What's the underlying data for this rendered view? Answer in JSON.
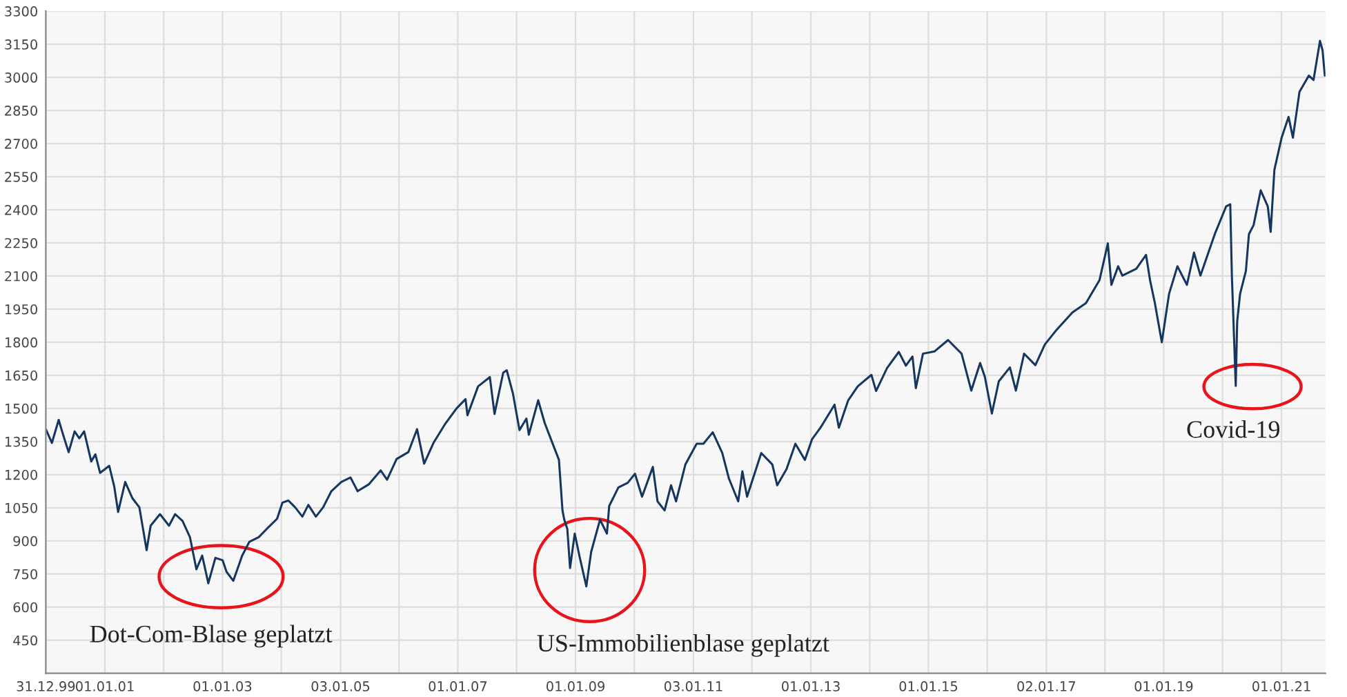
{
  "chart_data": {
    "type": "line",
    "x": [
      "1999-12-31",
      "2000-02-07",
      "2000-03-20",
      "2000-04-19",
      "2000-05-21",
      "2000-06-27",
      "2000-07-26",
      "2000-08-25",
      "2000-10-08",
      "2000-11-03",
      "2000-12-02",
      "2001-01-28",
      "2001-02-28",
      "2001-03-24",
      "2001-05-07",
      "2001-06-20",
      "2001-08-03",
      "2001-09-17",
      "2001-10-12",
      "2001-12-09",
      "2002-02-03",
      "2002-03-13",
      "2002-04-28",
      "2002-06-13",
      "2002-07-23",
      "2002-08-28",
      "2002-10-05",
      "2002-11-18",
      "2003-01-02",
      "2003-01-26",
      "2003-03-09",
      "2003-05-03",
      "2003-06-17",
      "2003-08-14",
      "2003-10-08",
      "2003-12-06",
      "2004-01-08",
      "2004-02-14",
      "2004-03-27",
      "2004-05-11",
      "2004-06-17",
      "2004-08-03",
      "2004-09-17",
      "2004-11-07",
      "2005-01-08",
      "2005-03-06",
      "2005-04-19",
      "2005-06-27",
      "2005-09-09",
      "2005-10-19",
      "2005-12-17",
      "2006-02-28",
      "2006-04-23",
      "2006-06-06",
      "2006-08-03",
      "2006-10-12",
      "2006-12-24",
      "2007-02-18",
      "2007-03-02",
      "2007-05-07",
      "2007-07-19",
      "2007-08-17",
      "2007-10-10",
      "2007-11-01",
      "2007-12-09",
      "2008-01-19",
      "2008-03-02",
      "2008-03-17",
      "2008-05-14",
      "2008-06-24",
      "2008-08-07",
      "2008-09-20",
      "2008-10-12",
      "2008-10-23",
      "2008-11-11",
      "2008-11-28",
      "2008-12-27",
      "2009-01-26",
      "2009-03-09",
      "2009-04-08",
      "2009-06-02",
      "2009-07-15",
      "2009-07-29",
      "2009-09-24",
      "2009-11-21",
      "2010-01-05",
      "2010-02-18",
      "2010-04-26",
      "2010-05-25",
      "2010-07-08",
      "2010-08-17",
      "2010-09-17",
      "2010-11-14",
      "2011-01-23",
      "2011-03-06",
      "2011-05-03",
      "2011-07-01",
      "2011-08-11",
      "2011-10-08",
      "2011-11-03",
      "2011-12-02",
      "2012-02-28",
      "2012-05-07",
      "2012-06-06",
      "2012-08-03",
      "2012-09-27",
      "2012-11-25",
      "2013-01-08",
      "2013-03-02",
      "2013-05-28",
      "2013-06-24",
      "2013-08-21",
      "2013-10-19",
      "2014-01-12",
      "2014-02-10",
      "2014-04-19",
      "2014-07-01",
      "2014-08-14",
      "2014-09-24",
      "2014-10-15",
      "2014-11-28",
      "2015-02-07",
      "2015-05-03",
      "2015-07-26",
      "2015-09-24",
      "2015-11-18",
      "2015-12-17",
      "2016-01-30",
      "2016-03-13",
      "2016-05-21",
      "2016-06-27",
      "2016-08-17",
      "2016-10-26",
      "2016-12-24",
      "2017-03-02",
      "2017-06-13",
      "2017-09-05",
      "2017-11-28",
      "2018-01-19",
      "2018-02-10",
      "2018-03-24",
      "2018-04-19",
      "2018-07-15",
      "2018-09-13",
      "2018-10-08",
      "2018-11-07",
      "2018-12-20",
      "2019-02-03",
      "2019-03-27",
      "2019-05-25",
      "2019-07-08",
      "2019-08-17",
      "2019-11-14",
      "2020-01-23",
      "2020-02-18",
      "2020-02-28",
      "2020-03-23",
      "2020-04-01",
      "2020-04-19",
      "2020-05-25",
      "2020-06-13",
      "2020-07-12",
      "2020-08-25",
      "2020-10-08",
      "2020-10-26",
      "2020-11-18",
      "2021-01-02",
      "2021-02-14",
      "2021-03-13",
      "2021-04-23",
      "2021-06-20",
      "2021-07-19",
      "2021-08-28",
      "2021-09-13",
      "2021-09-27"
    ],
    "series": [
      {
        "color": "#15365f",
        "values": [
          1406,
          1344,
          1448,
          1375,
          1302,
          1396,
          1365,
          1396,
          1260,
          1292,
          1208,
          1240,
          1146,
          1031,
          1167,
          1094,
          1052,
          858,
          969,
          1021,
          969,
          1021,
          990,
          917,
          771,
          833,
          708,
          823,
          812,
          760,
          719,
          833,
          896,
          917,
          958,
          1000,
          1073,
          1083,
          1052,
          1010,
          1063,
          1010,
          1052,
          1125,
          1167,
          1187,
          1125,
          1156,
          1219,
          1177,
          1271,
          1302,
          1406,
          1250,
          1344,
          1427,
          1500,
          1542,
          1469,
          1600,
          1642,
          1475,
          1662,
          1673,
          1569,
          1402,
          1454,
          1381,
          1537,
          1433,
          1350,
          1267,
          1038,
          996,
          954,
          777,
          933,
          829,
          694,
          850,
          996,
          933,
          1058,
          1142,
          1163,
          1204,
          1100,
          1235,
          1079,
          1038,
          1152,
          1079,
          1246,
          1340,
          1340,
          1392,
          1298,
          1183,
          1079,
          1215,
          1100,
          1298,
          1246,
          1152,
          1225,
          1340,
          1267,
          1360,
          1413,
          1517,
          1413,
          1537,
          1600,
          1652,
          1579,
          1683,
          1756,
          1694,
          1735,
          1592,
          1748,
          1758,
          1810,
          1748,
          1581,
          1706,
          1644,
          1477,
          1623,
          1686,
          1581,
          1748,
          1696,
          1790,
          1852,
          1935,
          1977,
          2081,
          2248,
          2060,
          2144,
          2102,
          2133,
          2196,
          2081,
          1977,
          1800,
          2019,
          2144,
          2060,
          2206,
          2102,
          2290,
          2415,
          2425,
          2102,
          1602,
          1894,
          2019,
          2123,
          2290,
          2331,
          2488,
          2415,
          2300,
          2581,
          2727,
          2821,
          2727,
          2935,
          3008,
          2988,
          3165,
          3123,
          3008
        ]
      }
    ],
    "xlim": [
      "1999-12-31",
      "2021-10-01"
    ],
    "xticks": [
      {
        "value": "1999-12-31",
        "label": "31.12.99"
      },
      {
        "value": "2001-01-01",
        "label": "01.01.01"
      },
      {
        "value": "2002-01-01",
        "label": null
      },
      {
        "value": "2003-01-01",
        "label": "01.01.03"
      },
      {
        "value": "2004-01-01",
        "label": null
      },
      {
        "value": "2005-01-03",
        "label": "03.01.05"
      },
      {
        "value": "2006-01-01",
        "label": null
      },
      {
        "value": "2007-01-01",
        "label": "01.01.07"
      },
      {
        "value": "2008-01-01",
        "label": null
      },
      {
        "value": "2009-01-01",
        "label": "01.01.09"
      },
      {
        "value": "2010-01-01",
        "label": null
      },
      {
        "value": "2011-01-03",
        "label": "03.01.11"
      },
      {
        "value": "2012-01-01",
        "label": null
      },
      {
        "value": "2013-01-01",
        "label": "01.01.13"
      },
      {
        "value": "2014-01-01",
        "label": null
      },
      {
        "value": "2015-01-01",
        "label": "01.01.15"
      },
      {
        "value": "2016-01-01",
        "label": null
      },
      {
        "value": "2017-01-02",
        "label": "02.01.17"
      },
      {
        "value": "2018-01-01",
        "label": null
      },
      {
        "value": "2019-01-01",
        "label": "01.01.19"
      },
      {
        "value": "2020-01-01",
        "label": null
      },
      {
        "value": "2021-01-01",
        "label": "01.01.21"
      }
    ],
    "ylim": [
      300,
      3300
    ],
    "yticks": [
      {
        "value": 300,
        "label": null
      },
      450,
      600,
      750,
      900,
      1050,
      1200,
      1350,
      1500,
      1650,
      1800,
      1950,
      2100,
      2250,
      2400,
      2550,
      2700,
      2850,
      3000,
      3150,
      3300
    ],
    "grid": true,
    "annotations": [
      "Dot-Com-Blase geplatzt",
      "US-Immobilienblase geplatzt",
      "Covid-19"
    ]
  }
}
